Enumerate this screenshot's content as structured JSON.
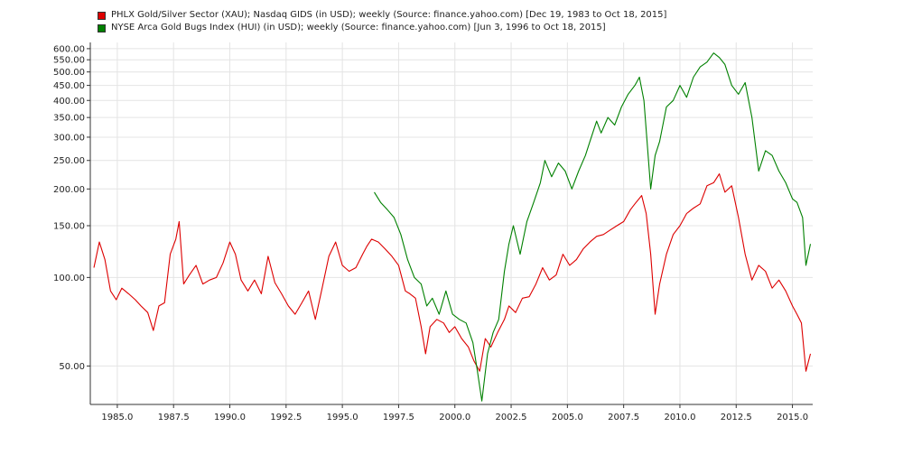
{
  "chart_data": {
    "type": "line",
    "title": "",
    "xlabel": "",
    "ylabel": "",
    "y_scale": "log",
    "xlim": [
      1983.8,
      2015.9
    ],
    "ylim": [
      37,
      630
    ],
    "grid": true,
    "legend_position": "top-left",
    "x_ticks": [
      1985.0,
      1987.5,
      1990.0,
      1992.5,
      1995.0,
      1997.5,
      2000.0,
      2002.5,
      2005.0,
      2007.5,
      2010.0,
      2012.5,
      2015.0
    ],
    "x_tick_labels": [
      "1985.0",
      "1987.5",
      "1990.0",
      "1992.5",
      "1995.0",
      "1997.5",
      "2000.0",
      "2002.5",
      "2005.0",
      "2007.5",
      "2010.0",
      "2012.5",
      "2015.0"
    ],
    "y_ticks": [
      50,
      100,
      150,
      200,
      250,
      300,
      350,
      400,
      450,
      500,
      550,
      600
    ],
    "y_tick_labels": [
      "50.00",
      "100.00",
      "150.00",
      "200.00",
      "250.00",
      "300.00",
      "350.00",
      "400.00",
      "450.00",
      "500.00",
      "550.00",
      "600.00"
    ],
    "series": [
      {
        "name": "PHLX Gold/Silver Sector (XAU); Nasdaq GIDS (in USD); weekly (Source: finance.yahoo.com) [Dec 19, 1983 to Oct 18, 2015]",
        "color": "#dd0000",
        "x": [
          1983.96,
          1984.2,
          1984.45,
          1984.7,
          1984.95,
          1985.2,
          1985.5,
          1985.8,
          1986.05,
          1986.35,
          1986.6,
          1986.85,
          1987.1,
          1987.35,
          1987.6,
          1987.75,
          1987.95,
          1988.2,
          1988.5,
          1988.8,
          1989.1,
          1989.4,
          1989.7,
          1990.0,
          1990.25,
          1990.5,
          1990.8,
          1991.1,
          1991.4,
          1991.7,
          1992.0,
          1992.3,
          1992.6,
          1992.9,
          1993.2,
          1993.5,
          1993.8,
          1994.1,
          1994.4,
          1994.7,
          1995.0,
          1995.3,
          1995.6,
          1995.9,
          1996.1,
          1996.3,
          1996.6,
          1996.9,
          1997.2,
          1997.5,
          1997.8,
          1998.0,
          1998.25,
          1998.5,
          1998.7,
          1998.9,
          1999.2,
          1999.5,
          1999.75,
          2000.0,
          2000.3,
          2000.6,
          2000.85,
          2001.1,
          2001.35,
          2001.6,
          2001.9,
          2002.2,
          2002.4,
          2002.7,
          2003.0,
          2003.3,
          2003.6,
          2003.9,
          2004.2,
          2004.5,
          2004.8,
          2005.1,
          2005.4,
          2005.7,
          2006.0,
          2006.3,
          2006.6,
          2006.9,
          2007.2,
          2007.5,
          2007.8,
          2008.0,
          2008.3,
          2008.5,
          2008.7,
          2008.9,
          2009.1,
          2009.4,
          2009.7,
          2010.0,
          2010.3,
          2010.6,
          2010.9,
          2011.2,
          2011.5,
          2011.75,
          2012.0,
          2012.3,
          2012.6,
          2012.9,
          2013.2,
          2013.5,
          2013.8,
          2014.1,
          2014.4,
          2014.7,
          2015.0,
          2015.2,
          2015.4,
          2015.6,
          2015.8
        ],
        "values": [
          108,
          132,
          115,
          90,
          84,
          92,
          88,
          84,
          80,
          76,
          66,
          80,
          82,
          120,
          135,
          155,
          95,
          102,
          110,
          95,
          98,
          100,
          112,
          132,
          120,
          98,
          90,
          98,
          88,
          118,
          96,
          88,
          80,
          75,
          82,
          90,
          72,
          92,
          118,
          132,
          110,
          105,
          108,
          120,
          128,
          135,
          132,
          125,
          118,
          110,
          90,
          88,
          85,
          68,
          55,
          68,
          72,
          70,
          65,
          68,
          62,
          58,
          52,
          48,
          62,
          58,
          65,
          72,
          80,
          76,
          85,
          86,
          95,
          108,
          98,
          102,
          120,
          110,
          115,
          125,
          132,
          138,
          140,
          145,
          150,
          155,
          170,
          178,
          190,
          165,
          120,
          75,
          95,
          120,
          140,
          150,
          165,
          172,
          178,
          205,
          210,
          225,
          195,
          205,
          160,
          120,
          98,
          110,
          105,
          92,
          98,
          90,
          80,
          75,
          70,
          48,
          55
        ]
      },
      {
        "name": "NYSE Arca Gold Bugs Index (HUI) (in USD); weekly (Source: finance.yahoo.com) [Jun 3, 1996 to Oct 18, 2015]",
        "color": "#008000",
        "x": [
          1996.42,
          1996.7,
          1997.0,
          1997.3,
          1997.6,
          1997.9,
          1998.2,
          1998.5,
          1998.75,
          1999.0,
          1999.3,
          1999.6,
          1999.9,
          2000.2,
          2000.5,
          2000.8,
          2001.0,
          2001.2,
          2001.45,
          2001.7,
          2001.95,
          2002.2,
          2002.4,
          2002.6,
          2002.9,
          2003.2,
          2003.5,
          2003.8,
          2004.0,
          2004.3,
          2004.6,
          2004.9,
          2005.2,
          2005.5,
          2005.8,
          2006.0,
          2006.3,
          2006.5,
          2006.8,
          2007.1,
          2007.4,
          2007.7,
          2008.0,
          2008.2,
          2008.4,
          2008.7,
          2008.9,
          2009.1,
          2009.4,
          2009.7,
          2010.0,
          2010.3,
          2010.6,
          2010.9,
          2011.2,
          2011.5,
          2011.75,
          2012.0,
          2012.3,
          2012.6,
          2012.9,
          2013.2,
          2013.5,
          2013.8,
          2014.1,
          2014.4,
          2014.7,
          2015.0,
          2015.2,
          2015.45,
          2015.6,
          2015.8
        ],
        "values": [
          195,
          180,
          170,
          160,
          140,
          115,
          100,
          95,
          80,
          85,
          75,
          90,
          75,
          72,
          70,
          60,
          48,
          38,
          55,
          65,
          72,
          105,
          130,
          150,
          120,
          155,
          180,
          210,
          250,
          220,
          245,
          230,
          200,
          230,
          260,
          290,
          340,
          310,
          350,
          330,
          380,
          420,
          450,
          480,
          400,
          200,
          260,
          290,
          380,
          400,
          450,
          410,
          480,
          520,
          540,
          580,
          560,
          530,
          450,
          420,
          460,
          350,
          230,
          270,
          260,
          230,
          210,
          185,
          180,
          160,
          110,
          130
        ]
      }
    ]
  }
}
